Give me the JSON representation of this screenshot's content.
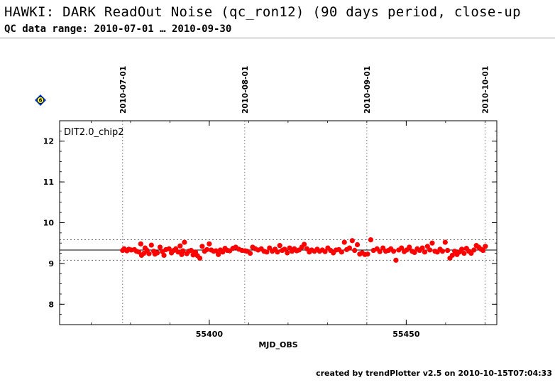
{
  "header": {
    "title": "HAWKI: DARK ReadOut Noise (qc_ron12) (90 days period, close-up",
    "subtitle": "QC data range: 2010-07-01 … 2010-09-30"
  },
  "footer": {
    "text": "created by trendPlotter v2.5 on 2010-10-15T07:04:33"
  },
  "icons": {
    "help": "diamond-info-icon"
  },
  "colors": {
    "points": "#ff0000",
    "axes": "#000000",
    "grid": "#555555"
  },
  "chart_data": {
    "type": "scatter",
    "panel_label": "DIT2.0_chip2",
    "xlabel": "MJD_OBS",
    "ylabel": "",
    "xlim": [
      55362,
      55473
    ],
    "ylim": [
      7.5,
      12.5
    ],
    "x_ticks": [
      55400,
      55450
    ],
    "y_ticks": [
      8,
      9,
      10,
      11,
      12
    ],
    "date_markers": [
      {
        "label": "2010-07-01",
        "x": 55378
      },
      {
        "label": "2010-08-01",
        "x": 55409
      },
      {
        "label": "2010-09-01",
        "x": 55440
      },
      {
        "label": "2010-10-01",
        "x": 55470
      }
    ],
    "mean": 9.33,
    "upper_limit": 9.58,
    "lower_limit": 9.08,
    "series": [
      {
        "values": [
          [
            55378.0,
            9.32
          ],
          [
            55378.4,
            9.36
          ],
          [
            55379.1,
            9.31
          ],
          [
            55379.6,
            9.35
          ],
          [
            55380.2,
            9.33
          ],
          [
            55381.0,
            9.34
          ],
          [
            55381.5,
            9.3
          ],
          [
            55382.1,
            9.28
          ],
          [
            55382.6,
            9.48
          ],
          [
            55382.8,
            9.2
          ],
          [
            55383.4,
            9.25
          ],
          [
            55383.7,
            9.38
          ],
          [
            55384.2,
            9.32
          ],
          [
            55384.7,
            9.24
          ],
          [
            55385.3,
            9.45
          ],
          [
            55385.9,
            9.3
          ],
          [
            55386.2,
            9.23
          ],
          [
            55386.8,
            9.26
          ],
          [
            55387.5,
            9.4
          ],
          [
            55388.1,
            9.29
          ],
          [
            55388.5,
            9.2
          ],
          [
            55389.0,
            9.34
          ],
          [
            55389.8,
            9.36
          ],
          [
            55390.4,
            9.26
          ],
          [
            55391.0,
            9.32
          ],
          [
            55391.5,
            9.36
          ],
          [
            55392.1,
            9.28
          ],
          [
            55392.6,
            9.43
          ],
          [
            55393.0,
            9.22
          ],
          [
            55393.3,
            9.31
          ],
          [
            55393.7,
            9.52
          ],
          [
            55394.3,
            9.24
          ],
          [
            55394.8,
            9.3
          ],
          [
            55395.4,
            9.32
          ],
          [
            55395.9,
            9.21
          ],
          [
            55396.5,
            9.28
          ],
          [
            55397.0,
            9.19
          ],
          [
            55397.6,
            9.13
          ],
          [
            55398.2,
            9.42
          ],
          [
            55398.8,
            9.3
          ],
          [
            55399.4,
            9.34
          ],
          [
            55400.0,
            9.48
          ],
          [
            55400.5,
            9.33
          ],
          [
            55401.1,
            9.3
          ],
          [
            55401.7,
            9.31
          ],
          [
            55402.3,
            9.22
          ],
          [
            55402.8,
            9.33
          ],
          [
            55403.4,
            9.28
          ],
          [
            55404.0,
            9.37
          ],
          [
            55404.6,
            9.32
          ],
          [
            55405.2,
            9.31
          ],
          [
            55406.0,
            9.37
          ],
          [
            55406.7,
            9.4
          ],
          [
            55407.5,
            9.35
          ],
          [
            55408.3,
            9.32
          ],
          [
            55409.1,
            9.31
          ],
          [
            55409.6,
            9.3
          ],
          [
            55410.4,
            9.25
          ],
          [
            55411.0,
            9.4
          ],
          [
            55411.7,
            9.36
          ],
          [
            55412.4,
            9.33
          ],
          [
            55413.2,
            9.36
          ],
          [
            55413.9,
            9.3
          ],
          [
            55414.6,
            9.28
          ],
          [
            55415.3,
            9.38
          ],
          [
            55416.0,
            9.3
          ],
          [
            55416.7,
            9.35
          ],
          [
            55417.3,
            9.28
          ],
          [
            55417.9,
            9.44
          ],
          [
            55418.5,
            9.32
          ],
          [
            55419.1,
            9.35
          ],
          [
            55419.8,
            9.26
          ],
          [
            55420.4,
            9.38
          ],
          [
            55421.0,
            9.3
          ],
          [
            55421.6,
            9.36
          ],
          [
            55422.2,
            9.31
          ],
          [
            55422.8,
            9.33
          ],
          [
            55423.5,
            9.4
          ],
          [
            55424.1,
            9.47
          ],
          [
            55424.8,
            9.36
          ],
          [
            55425.4,
            9.28
          ],
          [
            55426.0,
            9.33
          ],
          [
            55426.7,
            9.3
          ],
          [
            55427.4,
            9.35
          ],
          [
            55428.0,
            9.3
          ],
          [
            55428.7,
            9.33
          ],
          [
            55429.4,
            9.29
          ],
          [
            55430.1,
            9.38
          ],
          [
            55430.8,
            9.32
          ],
          [
            55431.5,
            9.26
          ],
          [
            55432.2,
            9.33
          ],
          [
            55432.9,
            9.34
          ],
          [
            55433.6,
            9.28
          ],
          [
            55434.3,
            9.52
          ],
          [
            55434.9,
            9.34
          ],
          [
            55435.6,
            9.38
          ],
          [
            55436.3,
            9.56
          ],
          [
            55436.9,
            9.32
          ],
          [
            55437.6,
            9.46
          ],
          [
            55438.2,
            9.23
          ],
          [
            55438.8,
            9.26
          ],
          [
            55439.5,
            9.22
          ],
          [
            55440.2,
            9.23
          ],
          [
            55441.0,
            9.58
          ],
          [
            55441.7,
            9.32
          ],
          [
            55442.6,
            9.36
          ],
          [
            55443.3,
            9.29
          ],
          [
            55444.1,
            9.38
          ],
          [
            55444.8,
            9.3
          ],
          [
            55445.5,
            9.32
          ],
          [
            55446.1,
            9.36
          ],
          [
            55446.8,
            9.3
          ],
          [
            55447.4,
            9.08
          ],
          [
            55448.1,
            9.33
          ],
          [
            55448.8,
            9.38
          ],
          [
            55449.5,
            9.29
          ],
          [
            55450.1,
            9.33
          ],
          [
            55450.8,
            9.4
          ],
          [
            55451.5,
            9.3
          ],
          [
            55452.1,
            9.27
          ],
          [
            55452.8,
            9.36
          ],
          [
            55453.4,
            9.32
          ],
          [
            55454.1,
            9.38
          ],
          [
            55454.7,
            9.28
          ],
          [
            55455.4,
            9.42
          ],
          [
            55456.0,
            9.33
          ],
          [
            55456.6,
            9.5
          ],
          [
            55457.3,
            9.3
          ],
          [
            55457.9,
            9.28
          ],
          [
            55458.6,
            9.35
          ],
          [
            55459.2,
            9.3
          ],
          [
            55459.9,
            9.52
          ],
          [
            55460.5,
            9.32
          ],
          [
            55461.1,
            9.13
          ],
          [
            55461.7,
            9.2
          ],
          [
            55462.3,
            9.3
          ],
          [
            55462.9,
            9.22
          ],
          [
            55463.5,
            9.28
          ],
          [
            55464.1,
            9.35
          ],
          [
            55464.7,
            9.25
          ],
          [
            55465.3,
            9.37
          ],
          [
            55465.9,
            9.3
          ],
          [
            55466.5,
            9.25
          ],
          [
            55467.2,
            9.33
          ],
          [
            55467.8,
            9.44
          ],
          [
            55468.4,
            9.4
          ],
          [
            55469.0,
            9.35
          ],
          [
            55469.5,
            9.32
          ],
          [
            55470.1,
            9.42
          ]
        ]
      }
    ]
  }
}
